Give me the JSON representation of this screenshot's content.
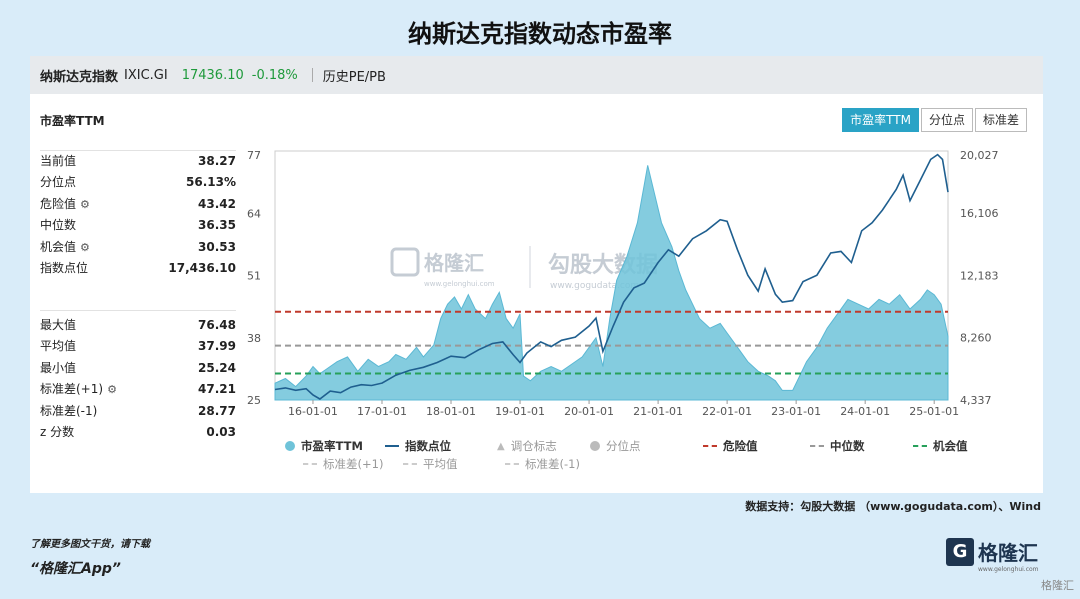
{
  "page_title": "纳斯达克指数动态市盈率",
  "topbar": {
    "name": "纳斯达克指数",
    "code": "IXIC.GI",
    "price": "17436.10",
    "change": "-0.18%",
    "history": "历史PE/PB"
  },
  "panel_label": "市盈率TTM",
  "tabs": [
    "市盈率TTM",
    "分位点",
    "标准差"
  ],
  "stats_top": [
    {
      "label": "当前值",
      "value": "38.27",
      "gear": false
    },
    {
      "label": "分位点",
      "value": "56.13%",
      "gear": false
    },
    {
      "label": "危险值",
      "value": "43.42",
      "gear": true
    },
    {
      "label": "中位数",
      "value": "36.35",
      "gear": false
    },
    {
      "label": "机会值",
      "value": "30.53",
      "gear": true
    },
    {
      "label": "指数点位",
      "value": "17,436.10",
      "gear": false
    }
  ],
  "stats_bottom": [
    {
      "label": "最大值",
      "value": "76.48",
      "gear": false
    },
    {
      "label": "平均值",
      "value": "37.99",
      "gear": false
    },
    {
      "label": "最小值",
      "value": "25.24",
      "gear": false
    },
    {
      "label": "标准差(+1)",
      "value": "47.21",
      "gear": true
    },
    {
      "label": "标准差(-1)",
      "value": "28.77",
      "gear": false
    },
    {
      "label": "z 分数",
      "value": "0.03",
      "gear": false
    }
  ],
  "watermark": {
    "brand": "格隆汇",
    "brand_url": "www.gelonghui.com",
    "brand2": "勾股大数据",
    "brand2_url": "www.gogudata.com"
  },
  "chart_data": {
    "type": "area",
    "x_ticks": [
      "16-01-01",
      "17-01-01",
      "18-01-01",
      "19-01-01",
      "20-01-01",
      "21-01-01",
      "22-01-01",
      "23-01-01",
      "24-01-01",
      "25-01-01"
    ],
    "y_left_ticks": [
      "77",
      "64",
      "51",
      "38",
      "25"
    ],
    "y_left_range": [
      25,
      77
    ],
    "y_right_ticks": [
      "20,027",
      "16,106",
      "12,183",
      "8,260",
      "4,337"
    ],
    "y_right_range": [
      4337,
      20027
    ],
    "x_range": [
      2015.45,
      2025.2
    ],
    "pe_series": [
      [
        2015.45,
        28.5
      ],
      [
        2015.6,
        29.5
      ],
      [
        2015.75,
        27.8
      ],
      [
        2015.9,
        30
      ],
      [
        2016.0,
        32
      ],
      [
        2016.1,
        30.5
      ],
      [
        2016.2,
        31.5
      ],
      [
        2016.35,
        33
      ],
      [
        2016.5,
        34
      ],
      [
        2016.65,
        31
      ],
      [
        2016.8,
        33.5
      ],
      [
        2016.95,
        32
      ],
      [
        2017.1,
        33
      ],
      [
        2017.2,
        34.5
      ],
      [
        2017.35,
        33.5
      ],
      [
        2017.5,
        36
      ],
      [
        2017.6,
        34
      ],
      [
        2017.75,
        36.5
      ],
      [
        2017.85,
        42
      ],
      [
        2017.95,
        45
      ],
      [
        2018.05,
        46.5
      ],
      [
        2018.15,
        44
      ],
      [
        2018.25,
        47
      ],
      [
        2018.35,
        44
      ],
      [
        2018.5,
        42
      ],
      [
        2018.6,
        45
      ],
      [
        2018.7,
        47.5
      ],
      [
        2018.8,
        42
      ],
      [
        2018.9,
        40
      ],
      [
        2019.0,
        43
      ],
      [
        2019.05,
        30
      ],
      [
        2019.15,
        29
      ],
      [
        2019.3,
        31
      ],
      [
        2019.45,
        32
      ],
      [
        2019.6,
        31
      ],
      [
        2019.75,
        32.5
      ],
      [
        2019.9,
        34
      ],
      [
        2020.0,
        36
      ],
      [
        2020.1,
        38
      ],
      [
        2020.2,
        32
      ],
      [
        2020.3,
        42
      ],
      [
        2020.4,
        50
      ],
      [
        2020.55,
        55
      ],
      [
        2020.7,
        62
      ],
      [
        2020.8,
        70
      ],
      [
        2020.85,
        74
      ],
      [
        2020.95,
        68
      ],
      [
        2021.05,
        62
      ],
      [
        2021.2,
        57
      ],
      [
        2021.3,
        52
      ],
      [
        2021.4,
        48
      ],
      [
        2021.5,
        45
      ],
      [
        2021.6,
        42
      ],
      [
        2021.75,
        40
      ],
      [
        2021.9,
        41
      ],
      [
        2022.0,
        39
      ],
      [
        2022.15,
        36
      ],
      [
        2022.3,
        33
      ],
      [
        2022.45,
        31
      ],
      [
        2022.6,
        30
      ],
      [
        2022.7,
        29
      ],
      [
        2022.8,
        27
      ],
      [
        2022.95,
        27
      ],
      [
        2023.05,
        30
      ],
      [
        2023.15,
        33
      ],
      [
        2023.3,
        36
      ],
      [
        2023.45,
        40
      ],
      [
        2023.6,
        43
      ],
      [
        2023.75,
        46
      ],
      [
        2023.9,
        45
      ],
      [
        2024.05,
        44
      ],
      [
        2024.2,
        46
      ],
      [
        2024.35,
        45
      ],
      [
        2024.5,
        47
      ],
      [
        2024.65,
        44
      ],
      [
        2024.8,
        46
      ],
      [
        2024.9,
        48
      ],
      [
        2025.0,
        47
      ],
      [
        2025.1,
        45
      ],
      [
        2025.2,
        38.3
      ]
    ],
    "index_series": [
      [
        2015.45,
        5000
      ],
      [
        2015.6,
        5100
      ],
      [
        2015.75,
        4950
      ],
      [
        2015.9,
        5050
      ],
      [
        2016.0,
        4650
      ],
      [
        2016.1,
        4400
      ],
      [
        2016.25,
        4900
      ],
      [
        2016.4,
        4800
      ],
      [
        2016.55,
        5150
      ],
      [
        2016.7,
        5300
      ],
      [
        2016.85,
        5250
      ],
      [
        2017.0,
        5400
      ],
      [
        2017.2,
        5900
      ],
      [
        2017.4,
        6200
      ],
      [
        2017.6,
        6400
      ],
      [
        2017.8,
        6700
      ],
      [
        2018.0,
        7100
      ],
      [
        2018.2,
        7000
      ],
      [
        2018.4,
        7500
      ],
      [
        2018.6,
        7900
      ],
      [
        2018.75,
        8000
      ],
      [
        2018.9,
        7200
      ],
      [
        2019.0,
        6700
      ],
      [
        2019.1,
        7300
      ],
      [
        2019.3,
        8000
      ],
      [
        2019.45,
        7700
      ],
      [
        2019.6,
        8100
      ],
      [
        2019.8,
        8300
      ],
      [
        2020.0,
        9000
      ],
      [
        2020.1,
        9500
      ],
      [
        2020.2,
        7400
      ],
      [
        2020.35,
        9000
      ],
      [
        2020.5,
        10500
      ],
      [
        2020.65,
        11400
      ],
      [
        2020.8,
        11700
      ],
      [
        2021.0,
        13000
      ],
      [
        2021.15,
        13800
      ],
      [
        2021.3,
        13400
      ],
      [
        2021.5,
        14500
      ],
      [
        2021.7,
        15000
      ],
      [
        2021.9,
        15700
      ],
      [
        2022.0,
        15600
      ],
      [
        2022.15,
        13800
      ],
      [
        2022.3,
        12200
      ],
      [
        2022.45,
        11200
      ],
      [
        2022.55,
        12600
      ],
      [
        2022.7,
        11000
      ],
      [
        2022.8,
        10500
      ],
      [
        2022.95,
        10600
      ],
      [
        2023.1,
        11800
      ],
      [
        2023.3,
        12200
      ],
      [
        2023.5,
        13600
      ],
      [
        2023.65,
        13700
      ],
      [
        2023.8,
        13000
      ],
      [
        2023.95,
        15000
      ],
      [
        2024.1,
        15500
      ],
      [
        2024.25,
        16300
      ],
      [
        2024.45,
        17600
      ],
      [
        2024.55,
        18500
      ],
      [
        2024.65,
        16900
      ],
      [
        2024.8,
        18200
      ],
      [
        2024.95,
        19500
      ],
      [
        2025.05,
        19800
      ],
      [
        2025.12,
        19500
      ],
      [
        2025.2,
        17436
      ]
    ],
    "reference_lines": [
      {
        "name": "危险值",
        "value": 43.42,
        "color": "#c0392b"
      },
      {
        "name": "中位数",
        "value": 36.35,
        "color": "#999999"
      },
      {
        "name": "机会值",
        "value": 30.53,
        "color": "#27a05a"
      }
    ],
    "legend": [
      "市盈率TTM",
      "指数点位",
      "调仓标志",
      "分位点",
      "危险值",
      "中位数",
      "机会值",
      "标准差(+1)",
      "平均值",
      "标准差(-1)"
    ],
    "colors": {
      "pe_fill": "#6fc3d9",
      "pe_stroke": "#5bb8d4",
      "index_line": "#1f5f8f"
    }
  },
  "credit": "数据支持：勾股大数据 （www.gogudata.com）、Wind",
  "footer": {
    "line1": "了解更多图文干货，请下载",
    "line2": "“格隆汇App”",
    "logo": "格隆汇",
    "logo_sub": "www.gelonghui.com",
    "logo_mark": "G"
  },
  "corner_mark": "格隆汇"
}
